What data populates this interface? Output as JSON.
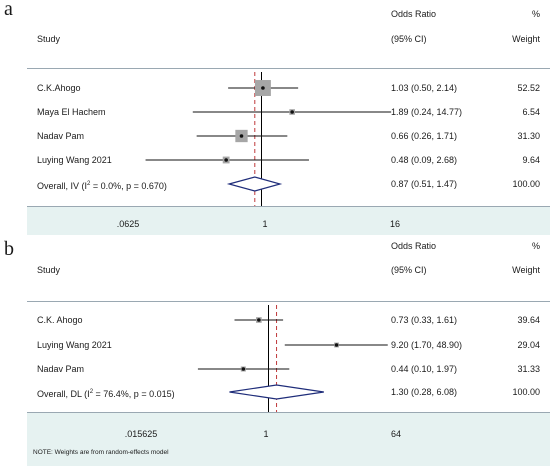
{
  "chart_data": [
    {
      "type": "forest",
      "panel_label": "a",
      "scale": "log",
      "column_headers": {
        "study": "Study",
        "effect_line1": "Odds Ratio",
        "effect_line2": "(95% CI)",
        "weight_line1": "%",
        "weight_line2": "Weight"
      },
      "studies": [
        {
          "name": "C.K.Ahogo",
          "or": 1.03,
          "lo": 0.5,
          "hi": 2.14,
          "ci_text": "1.03 (0.50, 2.14)",
          "weight": "52.52",
          "w": 52.52
        },
        {
          "name": "Maya El Hachem",
          "or": 1.89,
          "lo": 0.24,
          "hi": 14.77,
          "ci_text": "1.89 (0.24, 14.77)",
          "weight": "6.54",
          "w": 6.54
        },
        {
          "name": "Nadav Pam",
          "or": 0.66,
          "lo": 0.26,
          "hi": 1.71,
          "ci_text": "0.66 (0.26, 1.71)",
          "weight": "31.30",
          "w": 31.3
        },
        {
          "name": "Luying Wang 2021",
          "or": 0.48,
          "lo": 0.09,
          "hi": 2.68,
          "ci_text": "0.48 (0.09, 2.68)",
          "weight": "9.64",
          "w": 9.64
        }
      ],
      "overall": {
        "label_prefix": "Overall, IV (I",
        "sup": "2",
        "label_suffix": " = 0.0%, p = 0.670)",
        "or": 0.87,
        "lo": 0.51,
        "hi": 1.47,
        "ci_text": "0.87 (0.51, 1.47)",
        "weight": "100.00"
      },
      "xlim": [
        0.0625,
        16
      ],
      "ticks": [
        {
          "label": ".0625",
          "value": 0.0625
        },
        {
          "label": "1",
          "value": 1
        },
        {
          "label": "16",
          "value": 16
        }
      ],
      "note": ""
    },
    {
      "type": "forest",
      "panel_label": "b",
      "scale": "log",
      "column_headers": {
        "study": "Study",
        "effect_line1": "Odds Ratio",
        "effect_line2": "(95% CI)",
        "weight_line1": "%",
        "weight_line2": "Weight"
      },
      "studies": [
        {
          "name": "C.K. Ahogo",
          "or": 0.73,
          "lo": 0.33,
          "hi": 1.61,
          "ci_text": "0.73 (0.33, 1.61)",
          "weight": "39.64",
          "w": 39.64
        },
        {
          "name": "Luying Wang 2021",
          "or": 9.2,
          "lo": 1.7,
          "hi": 48.9,
          "ci_text": "9.20 (1.70, 48.90)",
          "weight": "29.04",
          "w": 29.04
        },
        {
          "name": "Nadav Pam",
          "or": 0.44,
          "lo": 0.1,
          "hi": 1.97,
          "ci_text": "0.44 (0.10, 1.97)",
          "weight": "31.33",
          "w": 31.33
        }
      ],
      "overall": {
        "label_prefix": "Overall, DL (I",
        "sup": "2",
        "label_suffix": " = 76.4%, p = 0.015)",
        "or": 1.3,
        "lo": 0.28,
        "hi": 6.08,
        "ci_text": "1.30 (0.28, 6.08)",
        "weight": "100.00"
      },
      "xlim": [
        0.015625,
        64
      ],
      "ticks": [
        {
          "label": ".015625",
          "value": 0.015625
        },
        {
          "label": "1",
          "value": 1
        },
        {
          "label": "64",
          "value": 64
        }
      ],
      "note": "NOTE: Weights are from random-effects model"
    }
  ],
  "colors": {
    "box": "#a6a6a6",
    "diamond": "#1f2d7a",
    "ref_line": "#000000",
    "overall_line": "#c0393b",
    "band": "#e6f2f1",
    "divider": "#9aa8b2"
  }
}
